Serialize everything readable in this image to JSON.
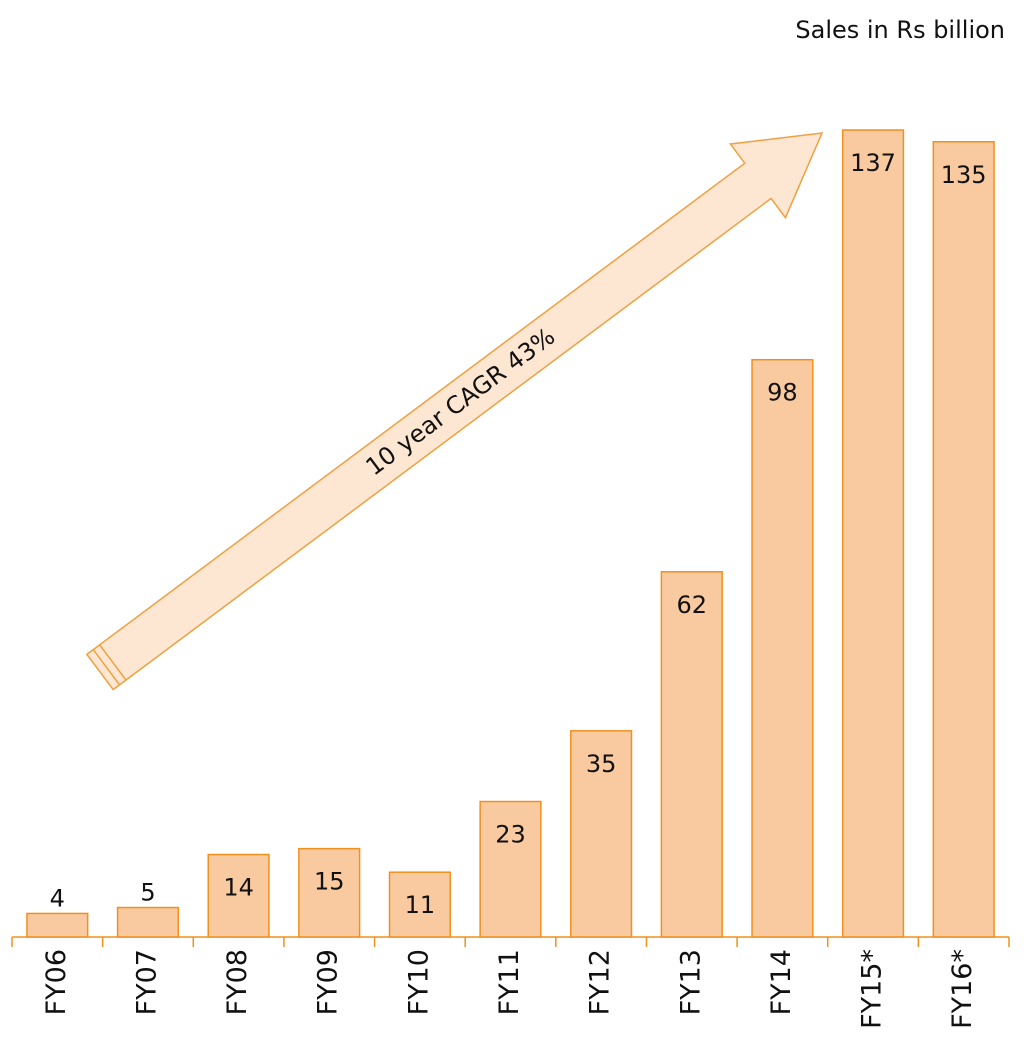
{
  "chart_data": {
    "type": "bar",
    "subtitle": "Sales in  Rs billion",
    "annotation": "10 year CAGR 43%",
    "categories": [
      "FY06",
      "FY07",
      "FY08",
      "FY09",
      "FY10",
      "FY11",
      "FY12",
      "FY13",
      "FY14",
      "FY15*",
      "FY16*"
    ],
    "values": [
      4,
      5,
      14,
      15,
      11,
      23,
      35,
      62,
      98,
      137,
      135
    ],
    "color": "#f9c9a0",
    "edge_color": "#f0901e",
    "ylim": [
      0,
      137
    ]
  }
}
